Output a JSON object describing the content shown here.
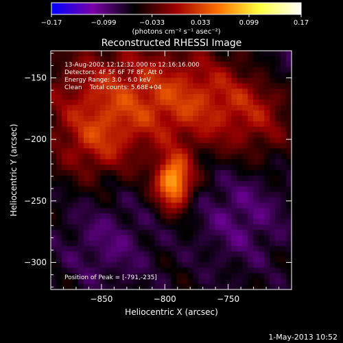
{
  "chart_data": {
    "type": "heatmap",
    "title": "Reconstructed RHESSI Image",
    "xlabel": "Heliocentric X (arcsec)",
    "ylabel": "Heliocentric Y (arcsec)",
    "xlim": [
      -890,
      -700
    ],
    "ylim": [
      -322,
      -128
    ],
    "x_ticks": [
      -850,
      -800,
      -750
    ],
    "x_tick_labels": [
      "−850",
      "−800",
      "−750"
    ],
    "y_ticks": [
      -150,
      -200,
      -250,
      -300
    ],
    "y_tick_labels": [
      "−150",
      "−200",
      "−250",
      "−300"
    ],
    "colorbar": {
      "range": [
        -0.17,
        0.17
      ],
      "ticks": [
        -0.17,
        -0.099,
        -0.033,
        0.033,
        0.099,
        0.17
      ],
      "tick_labels": [
        "−0.17",
        "−0.099",
        "−0.033",
        "0.033",
        "0.099",
        "0.17"
      ],
      "unit_label": "(photons cm⁻² s⁻¹ asec⁻²)",
      "colors": [
        "#0000ff",
        "#7a00a8",
        "#000000",
        "#a00000",
        "#ff7000",
        "#ffff40",
        "#ffffff"
      ]
    },
    "annotations": {
      "time_range": "13-Aug-2002 12:12:32.000 to 12:16:16.000",
      "detectors": "Detectors: 4F 5F 6F 7F 8F, Att 0",
      "energy_range": "Energy Range: 3.0 - 6.0 keV",
      "method_counts": "Clean    Total counts: 5.68E+04",
      "peak": "Position of Peak = [-791,-235]"
    },
    "peak_position": [
      -791,
      -235
    ],
    "peak_value": 0.17,
    "features": [
      {
        "name": "core",
        "x": -793,
        "y": -235,
        "sx": 10,
        "sy": 15,
        "amp": 0.14
      },
      {
        "name": "upper-left-glow",
        "x": -840,
        "y": -165,
        "sx": 40,
        "sy": 30,
        "amp": 0.07
      },
      {
        "name": "upper-right-glow",
        "x": -770,
        "y": -170,
        "sx": 35,
        "sy": 28,
        "amp": 0.065
      },
      {
        "name": "left-glow",
        "x": -855,
        "y": -205,
        "sx": 22,
        "sy": 20,
        "amp": 0.05
      },
      {
        "name": "right-upper-glow",
        "x": -725,
        "y": -180,
        "sx": 20,
        "sy": 30,
        "amp": 0.035
      },
      {
        "name": "lower-dark-left",
        "x": -845,
        "y": -285,
        "sx": 25,
        "sy": 25,
        "amp": -0.03
      },
      {
        "name": "lower-dark-right",
        "x": -740,
        "y": -260,
        "sx": 25,
        "sy": 30,
        "amp": -0.035
      },
      {
        "name": "corner-dark",
        "x": -710,
        "y": -140,
        "sx": 20,
        "sy": 15,
        "amp": -0.03
      }
    ]
  },
  "footer": {
    "date_stamp": "1-May-2013 10:52"
  }
}
